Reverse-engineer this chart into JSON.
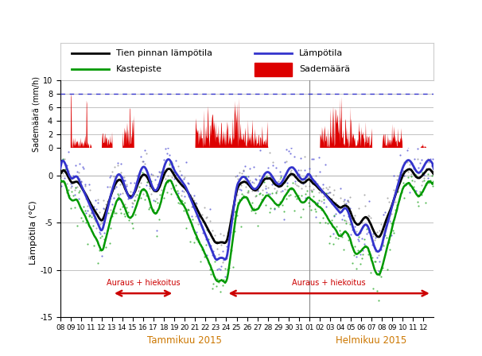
{
  "precip_ylabel": "Sademäärä (mm/h)",
  "temp_ylabel": "Lämpötila (°C)",
  "xlabel_jan": "Tammikuu 2015",
  "xlabel_feb": "Helmikuu 2015",
  "legend_entries": [
    "Tien pinnan lämpötila",
    "Lämpötila",
    "Kastepiste",
    "Sademäärä"
  ],
  "colors": {
    "road_surface": "#000000",
    "air_temp": "#3333cc",
    "dewpoint": "#009900",
    "precipitation": "#dd0000",
    "dashed_blue": "#3333cc",
    "grid": "#aaaaaa",
    "arrow": "#cc0000",
    "month_label": "#cc7700",
    "sep_line": "#888888"
  },
  "precip_ylim": [
    0,
    10
  ],
  "temp_ylim": [
    -15,
    3
  ],
  "arrow1_label": "Auraus + hiekoitus",
  "arrow2_label": "Auraus + hiekoitus",
  "figsize": [
    6.06,
    4.48
  ],
  "dpi": 100,
  "n_days_jan": 24,
  "n_days_feb": 12
}
